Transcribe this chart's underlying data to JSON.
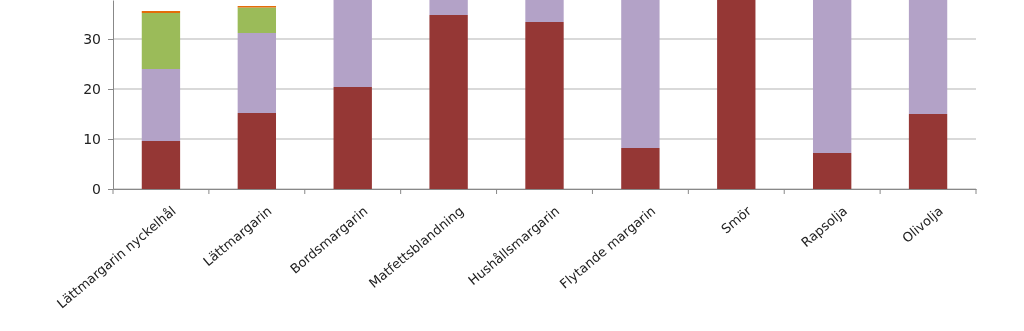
{
  "chart_data": {
    "type": "bar",
    "stacked": true,
    "categories": [
      "Lättmargarin nyckelhål",
      "Lättmargarin",
      "Bordsmargarin",
      "Matfettsblandning",
      "Hushållsmargarin",
      "Flytande margarin",
      "Smör",
      "Rapsolja",
      "Olivolja"
    ],
    "series": [
      {
        "color": "#953735",
        "values": [
          9.6,
          15.2,
          20.4,
          34.8,
          33.4,
          8.2,
          37.8,
          7.2,
          15
        ]
      },
      {
        "color": "#b3a2c7",
        "values": [
          14.4,
          16,
          17.4,
          3,
          4.4,
          29.6,
          null,
          30.6,
          22.8
        ]
      },
      {
        "color": "#9bbb59",
        "values": [
          11.2,
          5.1,
          null,
          null,
          null,
          null,
          null,
          null,
          null
        ]
      },
      {
        "color": "#e46c0a",
        "values": [
          0.4,
          0.3,
          null,
          null,
          null,
          null,
          null,
          null,
          null
        ]
      }
    ],
    "ylim": [
      0,
      37.8
    ],
    "yticks": [
      0,
      10,
      20,
      30
    ],
    "grid": "y"
  }
}
